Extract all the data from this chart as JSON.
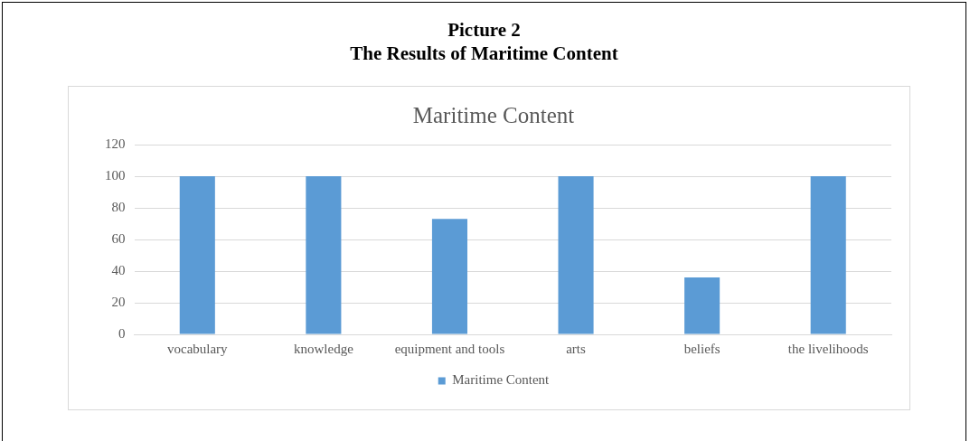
{
  "chart_data": {
    "type": "bar",
    "title": "Maritime Content",
    "annotations": [
      "Picture 2",
      "The Results of Maritime Content"
    ],
    "categories": [
      "vocabulary",
      "knowledge",
      "equipment and tools",
      "arts",
      "beliefs",
      "the livelihoods"
    ],
    "series": [
      {
        "name": "Maritime Content",
        "color": "#5b9bd5",
        "values": [
          100,
          100,
          73,
          100,
          36,
          100
        ]
      }
    ],
    "ylim": [
      0,
      120
    ],
    "yticks": [
      0,
      20,
      40,
      60,
      80,
      100,
      120
    ],
    "grid": "y",
    "legend": "bottom"
  }
}
